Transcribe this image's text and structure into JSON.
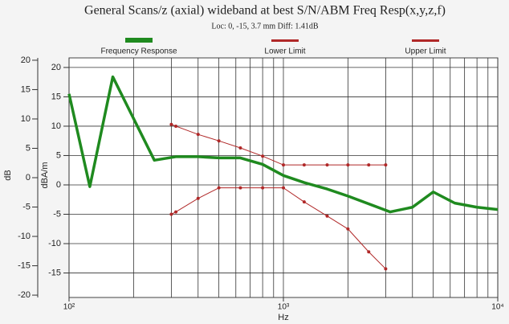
{
  "chart_data": {
    "type": "line",
    "title": "General Scans/z (axial) wideband at best S/N/ABM Freq Resp(x,y,z,f)",
    "subtitle": "Loc: 0, -15, 3.7 mm Diff: 1.41dB",
    "x_label": "Hz",
    "y_label": "dB",
    "y2_label": "dBA/m",
    "log_x": true,
    "grid": true,
    "xlim": [
      100,
      10000
    ],
    "xticks": [
      {
        "value": 100,
        "label": "10²"
      },
      {
        "value": 1000,
        "label": "10³"
      },
      {
        "value": 10000,
        "label": "10⁴"
      }
    ],
    "xminor_ticks": [
      200,
      300,
      400,
      500,
      600,
      700,
      800,
      900,
      2000,
      3000,
      4000,
      5000,
      6000,
      7000,
      8000,
      9000
    ],
    "ylim": [
      -20.4,
      20.4
    ],
    "yticks": [
      -20,
      -15,
      -10,
      -5,
      0,
      5,
      10,
      15,
      20
    ],
    "y2lim": [
      -19.17,
      21.63
    ],
    "y2ticks": [
      -15,
      -10,
      -5,
      0,
      5,
      10,
      15,
      20
    ],
    "series": [
      {
        "name": "Frequency Response",
        "color": "#1f8a1f",
        "axis": "y2",
        "x": [
          100,
          125,
          160,
          250,
          315,
          400,
          500,
          630,
          800,
          1000,
          1250,
          1600,
          2000,
          3150,
          4000,
          5000,
          6300,
          8000,
          10000
        ],
        "values": [
          15.5,
          -0.3,
          18.4,
          4.2,
          4.8,
          4.8,
          4.6,
          4.6,
          3.5,
          1.6,
          0.4,
          -0.7,
          -1.9,
          -4.6,
          -3.8,
          -1.2,
          -3.1,
          -3.8,
          -4.2
        ]
      },
      {
        "name": "Lower Limit",
        "color": "#b02828",
        "axis": "y2",
        "x": [
          300,
          315,
          400,
          500,
          630,
          800,
          1000,
          1250,
          1600,
          2000,
          2500,
          3000
        ],
        "values": [
          -5,
          -4.6,
          -2.3,
          -0.5,
          -0.5,
          -0.5,
          -0.5,
          -2.9,
          -5.3,
          -7.5,
          -11.4,
          -14.3
        ]
      },
      {
        "name": "Upper Limit",
        "color": "#b02828",
        "axis": "y2",
        "x": [
          300,
          315,
          400,
          500,
          630,
          800,
          1000,
          1250,
          1600,
          2000,
          2500,
          3000
        ],
        "values": [
          10.3,
          10,
          8.6,
          7.5,
          6.3,
          4.9,
          3.4,
          3.4,
          3.4,
          3.4,
          3.4,
          3.4
        ]
      }
    ]
  }
}
